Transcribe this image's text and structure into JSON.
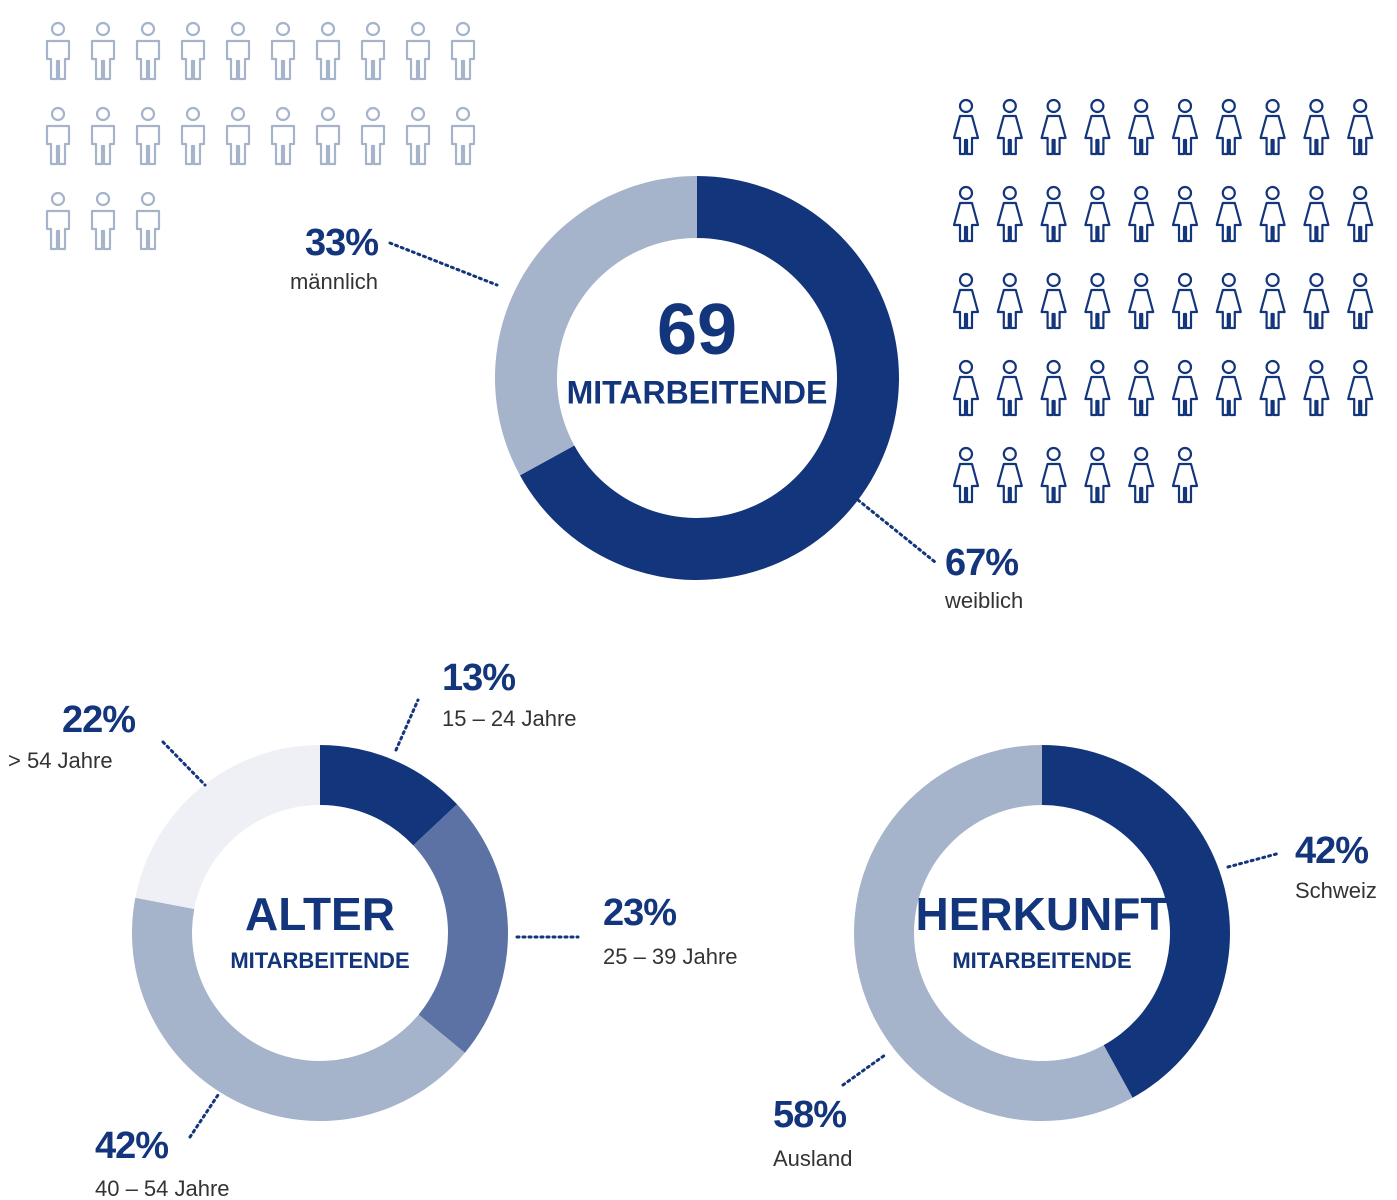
{
  "chart_data": [
    {
      "type": "donut",
      "total": 69,
      "subtitle": "MITARBEITENDE",
      "categories": [
        "weiblich",
        "männlich"
      ],
      "values": [
        67,
        33
      ],
      "value_labels": [
        "67%",
        "33%"
      ],
      "colors": [
        "#13357b",
        "#a5b3cb"
      ],
      "icon_counts": [
        46,
        23
      ]
    },
    {
      "type": "donut",
      "title": "ALTER",
      "subtitle": "MITARBEITENDE",
      "categories": [
        "15 – 24 Jahre",
        "25 – 39 Jahre",
        "40 – 54 Jahre",
        "> 54 Jahre"
      ],
      "values": [
        13,
        23,
        42,
        22
      ],
      "value_labels": [
        "13%",
        "23%",
        "42%",
        "22%"
      ],
      "colors": [
        "#13357b",
        "#5c72a4",
        "#a5b3cb",
        "#eef0f5"
      ]
    },
    {
      "type": "donut",
      "title": "HERKUNFT",
      "subtitle": "MITARBEITENDE",
      "categories": [
        "Schweiz",
        "Ausland"
      ],
      "values": [
        42,
        58
      ],
      "value_labels": [
        "42%",
        "58%"
      ],
      "colors": [
        "#13357b",
        "#a5b3cb"
      ]
    }
  ]
}
